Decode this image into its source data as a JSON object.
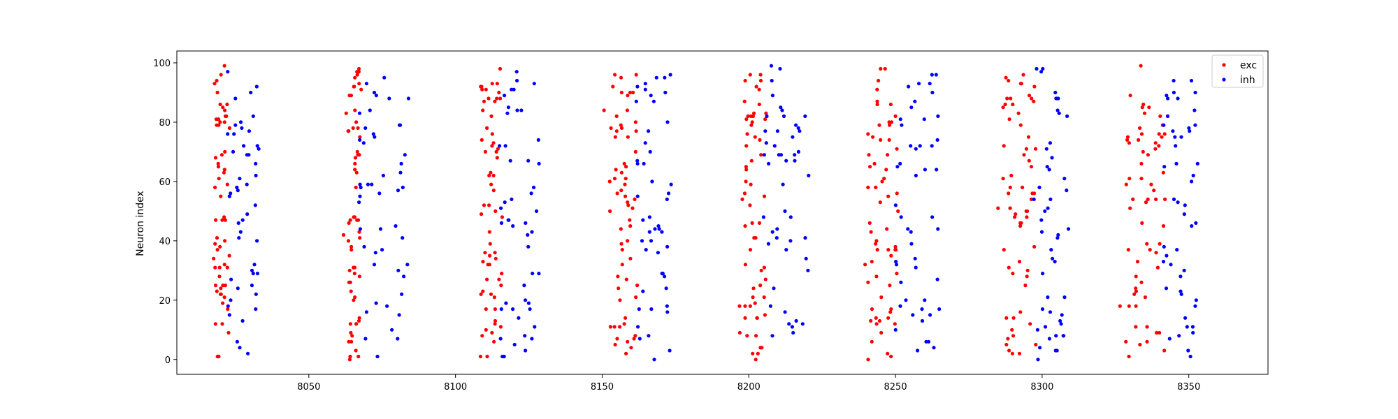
{
  "chart_data": {
    "type": "scatter",
    "title": "",
    "xlabel": "",
    "ylabel": "Neuron index",
    "xlim": [
      8005,
      8377
    ],
    "ylim": [
      -5,
      104
    ],
    "x_ticks": [
      8050,
      8100,
      8150,
      8200,
      8250,
      8300,
      8350
    ],
    "y_ticks": [
      0,
      20,
      40,
      60,
      80,
      100
    ],
    "grid": false,
    "legend": {
      "position": "top-right",
      "entries": [
        "exc",
        "inh"
      ]
    },
    "colors": {
      "exc": "#ff0000",
      "inh": "#0000ff"
    },
    "bursts": [
      {
        "start": 8016,
        "exc_end": 8023,
        "inh_end": 8036
      },
      {
        "start": 8062,
        "exc_end": 8068,
        "inh_end": 8087
      },
      {
        "start": 8107,
        "exc_end": 8116,
        "inh_end": 8133
      },
      {
        "start": 8151,
        "exc_end": 8162,
        "inh_end": 8177
      },
      {
        "start": 8197,
        "exc_end": 8206,
        "inh_end": 8224
      },
      {
        "start": 8239,
        "exc_end": 8251,
        "inh_end": 8268
      },
      {
        "start": 8285,
        "exc_end": 8298,
        "inh_end": 8312
      },
      {
        "start": 8327,
        "exc_end": 8342,
        "inh_end": 8356
      }
    ],
    "series": [
      {
        "name": "exc",
        "neurons": "0-79",
        "description_values": "spike times clustered in the first part of each burst"
      },
      {
        "name": "inh",
        "neurons": "0-99",
        "description_values": "spike times spread over the later part of each burst"
      }
    ]
  }
}
